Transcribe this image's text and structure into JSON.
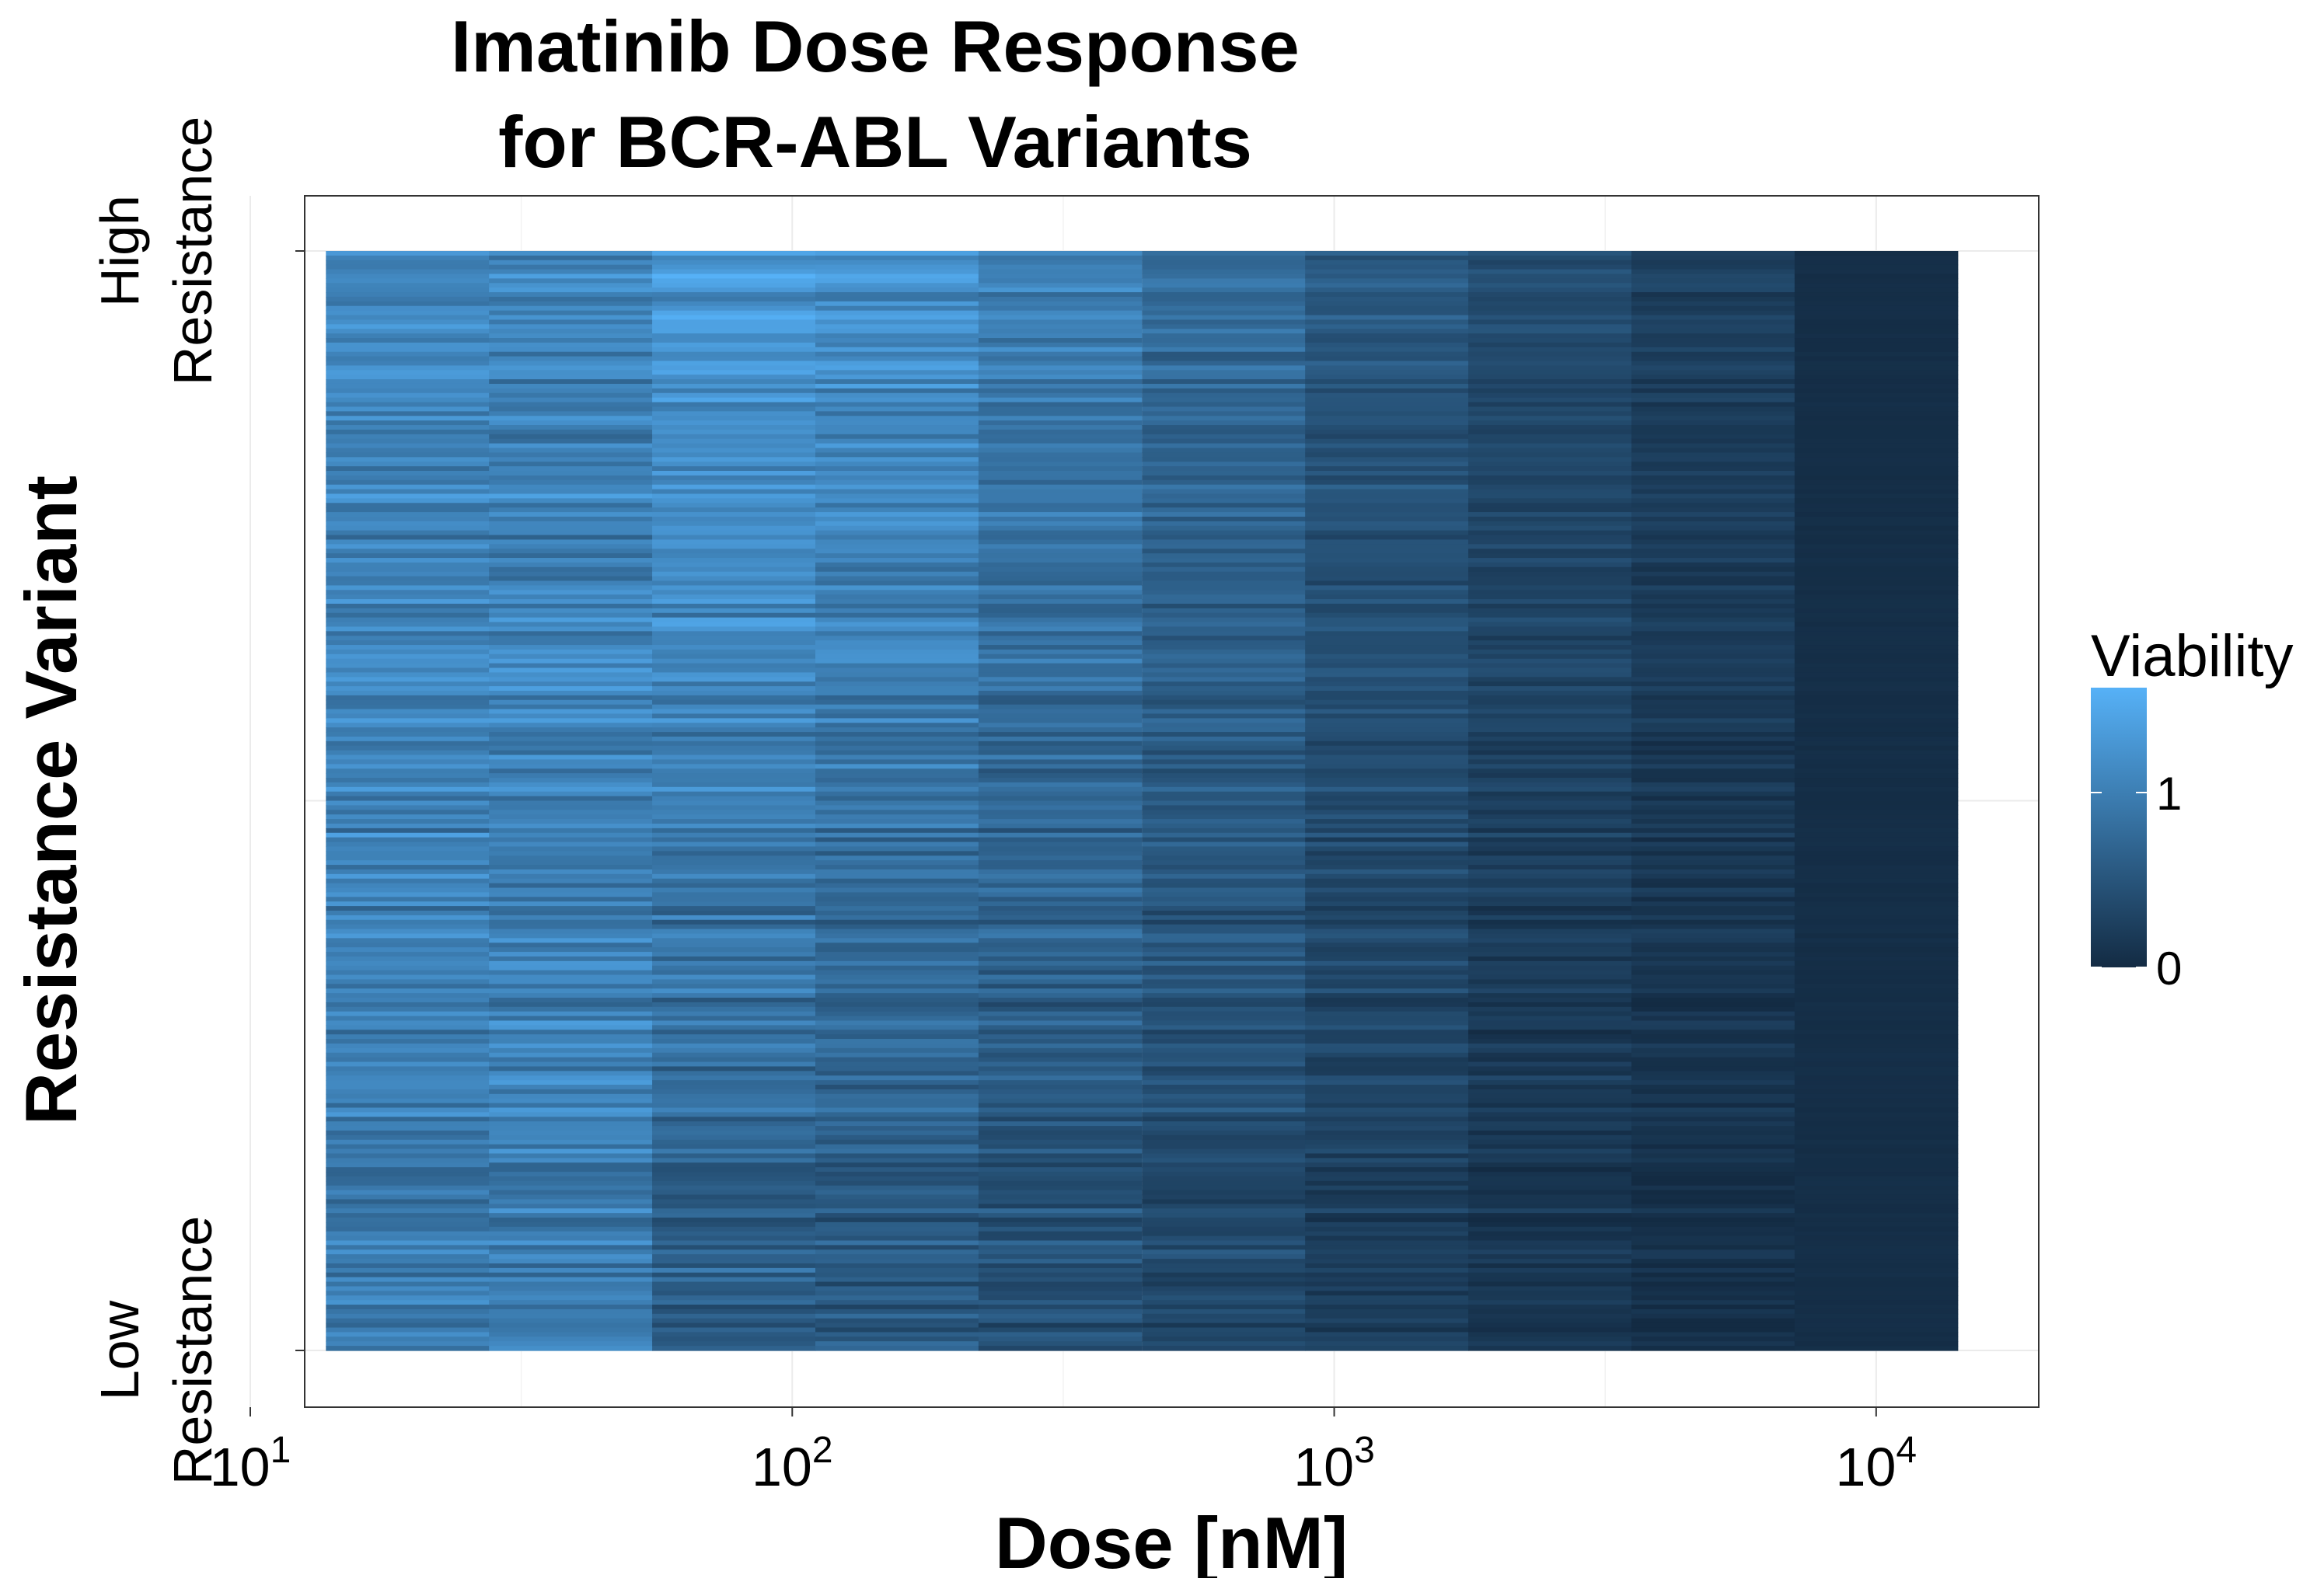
{
  "chart_data": {
    "type": "heatmap",
    "title": "Imatinib Dose Response",
    "subtitle": "for BCR-ABL Variants",
    "xlabel": "Dose [nM]",
    "ylabel": "Resistance Variant",
    "x_scale": "log10",
    "xlim": [
      12.6,
      19953
    ],
    "x_ticks": [
      {
        "value": 10,
        "base": "10",
        "exp": "1"
      },
      {
        "value": 100,
        "base": "10",
        "exp": "2"
      },
      {
        "value": 1000,
        "base": "10",
        "exp": "3"
      },
      {
        "value": 10000,
        "base": "10",
        "exp": "4"
      }
    ],
    "y_ticks": {
      "top": [
        "High",
        "Resistance"
      ],
      "bottom": [
        "Low",
        "Resistance"
      ]
    },
    "doses": [
      19.5,
      39,
      78,
      156,
      312,
      625,
      1250,
      2500,
      5000,
      10000
    ],
    "variant_count": 240,
    "column_mean_viability": [
      1.0,
      1.0,
      0.95,
      0.88,
      0.72,
      0.55,
      0.38,
      0.25,
      0.15,
      0.05
    ],
    "color_scale": {
      "legend_title": "Viability",
      "low_color": "#132b43",
      "high_color": "#56b1f7",
      "limits": [
        0,
        1.6
      ],
      "ticks": [
        {
          "value": 0,
          "label": "0"
        },
        {
          "value": 1,
          "label": "1"
        }
      ]
    },
    "grid": true,
    "legend_position": "right"
  }
}
